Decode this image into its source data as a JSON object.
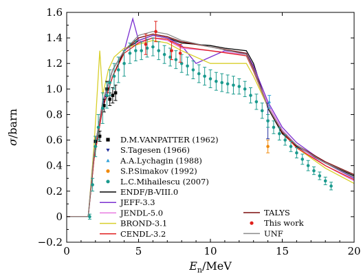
{
  "chart_data": {
    "type": "scatter",
    "title": "",
    "xlabel": {
      "main": "E",
      "sub": "n",
      "unit": "/MeV"
    },
    "ylabel": {
      "main": "σ",
      "unit": "/barn"
    },
    "xlim": [
      0,
      20
    ],
    "ylim": [
      -0.2,
      1.6
    ],
    "xticks": [
      0,
      5,
      10,
      15,
      20
    ],
    "yticks": [
      -0.2,
      0,
      0.2,
      0.4,
      0.6,
      0.8,
      1.0,
      1.2,
      1.4,
      1.6
    ],
    "ytick_labels": [
      "−0.2",
      "0",
      "0.2",
      "0.4",
      "0.6",
      "0.8",
      "1.0",
      "1.2",
      "1.4",
      "1.6"
    ],
    "legend_position": "lower-center",
    "point_series": [
      {
        "name": "D.M.VANPATTER (1962)",
        "color": "#000000",
        "marker": "square",
        "points": [
          [
            2.0,
            0.59,
            0.04
          ],
          [
            2.3,
            0.63,
            0.04
          ],
          [
            2.6,
            0.87,
            0.05
          ],
          [
            2.8,
            1.0,
            0.06
          ],
          [
            3.0,
            0.92,
            0.05
          ],
          [
            3.2,
            0.95,
            0.06
          ],
          [
            3.4,
            0.97,
            0.06
          ]
        ]
      },
      {
        "name": "S.Tagesen (1966)",
        "color": "#1f2d9a",
        "marker": "triangle-down",
        "points": [
          [
            14.0,
            0.75,
            0.14
          ]
        ]
      },
      {
        "name": "A.A.Lychagin (1988)",
        "color": "#2a9fd8",
        "marker": "triangle-up",
        "points": [
          [
            14.1,
            0.9,
            0.05
          ]
        ]
      },
      {
        "name": "S.P.Simakov (1992)",
        "color": "#f08a0c",
        "marker": "circle",
        "points": [
          [
            14.0,
            0.55,
            0.05
          ]
        ]
      },
      {
        "name": "L.C.Mihailescu (2007)",
        "color": "#1a9a8e",
        "marker": "circle",
        "points": [
          [
            1.6,
            0.0,
            0.02
          ],
          [
            1.8,
            0.25,
            0.05
          ],
          [
            2.0,
            0.55,
            0.08
          ],
          [
            2.2,
            0.7,
            0.1
          ],
          [
            2.5,
            0.85,
            0.12
          ],
          [
            2.8,
            0.95,
            0.1
          ],
          [
            3.0,
            1.05,
            0.1
          ],
          [
            3.3,
            1.1,
            0.1
          ],
          [
            3.6,
            1.15,
            0.1
          ],
          [
            4.0,
            1.2,
            0.1
          ],
          [
            4.4,
            1.28,
            0.08
          ],
          [
            4.8,
            1.3,
            0.08
          ],
          [
            5.2,
            1.3,
            0.07
          ],
          [
            5.6,
            1.32,
            0.07
          ],
          [
            6.0,
            1.33,
            0.07
          ],
          [
            6.4,
            1.3,
            0.07
          ],
          [
            6.8,
            1.27,
            0.07
          ],
          [
            7.2,
            1.25,
            0.07
          ],
          [
            7.6,
            1.23,
            0.07
          ],
          [
            8.0,
            1.2,
            0.07
          ],
          [
            8.4,
            1.18,
            0.07
          ],
          [
            8.8,
            1.15,
            0.07
          ],
          [
            9.2,
            1.12,
            0.07
          ],
          [
            9.6,
            1.1,
            0.07
          ],
          [
            10.0,
            1.08,
            0.07
          ],
          [
            10.4,
            1.06,
            0.07
          ],
          [
            10.8,
            1.05,
            0.07
          ],
          [
            11.2,
            1.04,
            0.07
          ],
          [
            11.6,
            1.03,
            0.07
          ],
          [
            12.0,
            1.02,
            0.06
          ],
          [
            12.4,
            1.0,
            0.06
          ],
          [
            12.8,
            0.95,
            0.06
          ],
          [
            13.2,
            0.9,
            0.06
          ],
          [
            13.6,
            0.83,
            0.06
          ],
          [
            14.0,
            0.75,
            0.05
          ],
          [
            14.4,
            0.7,
            0.05
          ],
          [
            14.8,
            0.65,
            0.05
          ],
          [
            15.2,
            0.6,
            0.04
          ],
          [
            15.6,
            0.55,
            0.04
          ],
          [
            16.0,
            0.5,
            0.04
          ],
          [
            16.4,
            0.45,
            0.04
          ],
          [
            16.8,
            0.4,
            0.04
          ],
          [
            17.2,
            0.36,
            0.03
          ],
          [
            17.6,
            0.32,
            0.03
          ],
          [
            18.0,
            0.28,
            0.03
          ],
          [
            18.4,
            0.24,
            0.03
          ]
        ]
      },
      {
        "name": "This work",
        "color": "#e0201b",
        "marker": "circle",
        "points": [
          [
            5.5,
            1.35,
            0.08
          ],
          [
            6.2,
            1.45,
            0.08
          ],
          [
            7.3,
            1.3,
            0.07
          ],
          [
            7.9,
            1.28,
            0.07
          ]
        ]
      }
    ],
    "curve_series": [
      {
        "name": "ENDF/B-VIII.0",
        "color": "#000000",
        "points": [
          [
            0,
            0
          ],
          [
            1.5,
            0
          ],
          [
            1.9,
            0.45
          ],
          [
            2.5,
            0.85
          ],
          [
            3.2,
            1.1
          ],
          [
            4.0,
            1.3
          ],
          [
            5.0,
            1.38
          ],
          [
            6.0,
            1.42
          ],
          [
            7.0,
            1.4
          ],
          [
            8.0,
            1.36
          ],
          [
            10.0,
            1.34
          ],
          [
            11.0,
            1.32
          ],
          [
            12.5,
            1.3
          ],
          [
            13.0,
            1.2
          ],
          [
            14.0,
            0.85
          ],
          [
            15.0,
            0.65
          ],
          [
            16.0,
            0.55
          ],
          [
            18.0,
            0.42
          ],
          [
            20.0,
            0.32
          ]
        ]
      },
      {
        "name": "JEFF-3.3",
        "color": "#7a2fd0",
        "points": [
          [
            0,
            0
          ],
          [
            1.5,
            0
          ],
          [
            1.9,
            0.5
          ],
          [
            2.5,
            0.88
          ],
          [
            3.2,
            1.15
          ],
          [
            4.0,
            1.3
          ],
          [
            4.6,
            1.55
          ],
          [
            5.0,
            1.38
          ],
          [
            6.0,
            1.42
          ],
          [
            7.0,
            1.4
          ],
          [
            8.0,
            1.34
          ],
          [
            9.0,
            1.2
          ],
          [
            10.0,
            1.25
          ],
          [
            11.0,
            1.3
          ],
          [
            12.5,
            1.28
          ],
          [
            13.0,
            1.18
          ],
          [
            14.0,
            0.9
          ],
          [
            15.0,
            0.7
          ],
          [
            16.0,
            0.58
          ],
          [
            18.0,
            0.42
          ],
          [
            20.0,
            0.3
          ]
        ]
      },
      {
        "name": "JENDL-5.0",
        "color": "#e879e0",
        "points": [
          [
            0,
            0
          ],
          [
            1.5,
            0
          ],
          [
            1.9,
            0.5
          ],
          [
            2.5,
            0.9
          ],
          [
            3.2,
            1.15
          ],
          [
            4.0,
            1.3
          ],
          [
            5.0,
            1.37
          ],
          [
            6.0,
            1.4
          ],
          [
            7.0,
            1.38
          ],
          [
            8.0,
            1.32
          ],
          [
            10.0,
            1.3
          ],
          [
            12.5,
            1.27
          ],
          [
            13.0,
            1.15
          ],
          [
            14.0,
            0.88
          ],
          [
            15.0,
            0.68
          ],
          [
            16.0,
            0.56
          ],
          [
            18.0,
            0.4
          ],
          [
            20.0,
            0.28
          ]
        ]
      },
      {
        "name": "BROND-3.1",
        "color": "#d8cf2a",
        "points": [
          [
            0,
            0
          ],
          [
            1.5,
            0
          ],
          [
            1.9,
            0.55
          ],
          [
            2.3,
            1.3
          ],
          [
            2.5,
            0.95
          ],
          [
            2.9,
            1.15
          ],
          [
            3.3,
            1.25
          ],
          [
            4.0,
            1.32
          ],
          [
            5.0,
            1.35
          ],
          [
            6.0,
            1.38
          ],
          [
            7.0,
            1.36
          ],
          [
            8.0,
            1.3
          ],
          [
            10.0,
            1.2
          ],
          [
            12.5,
            1.2
          ],
          [
            13.0,
            1.1
          ],
          [
            14.0,
            0.86
          ],
          [
            15.0,
            0.66
          ],
          [
            16.0,
            0.54
          ],
          [
            18.0,
            0.38
          ],
          [
            20.0,
            0.26
          ]
        ]
      },
      {
        "name": "CENDL-3.2",
        "color": "#e02020",
        "points": [
          [
            0,
            0
          ],
          [
            1.5,
            0
          ],
          [
            1.9,
            0.45
          ],
          [
            2.5,
            0.85
          ],
          [
            3.2,
            1.1
          ],
          [
            4.0,
            1.28
          ],
          [
            5.0,
            1.36
          ],
          [
            6.0,
            1.4
          ],
          [
            7.0,
            1.39
          ],
          [
            8.0,
            1.33
          ],
          [
            10.0,
            1.3
          ],
          [
            12.5,
            1.26
          ],
          [
            13.0,
            1.14
          ],
          [
            14.0,
            0.86
          ],
          [
            15.0,
            0.66
          ],
          [
            16.0,
            0.54
          ],
          [
            18.0,
            0.4
          ],
          [
            20.0,
            0.29
          ]
        ]
      },
      {
        "name": "TALYS",
        "color": "#7a0a0a",
        "points": [
          [
            0,
            0
          ],
          [
            1.5,
            0
          ],
          [
            1.9,
            0.5
          ],
          [
            2.5,
            0.9
          ],
          [
            3.2,
            1.15
          ],
          [
            4.0,
            1.3
          ],
          [
            5.0,
            1.4
          ],
          [
            6.0,
            1.43
          ],
          [
            7.0,
            1.41
          ],
          [
            8.0,
            1.37
          ],
          [
            10.0,
            1.33
          ],
          [
            12.5,
            1.28
          ],
          [
            13.0,
            1.16
          ],
          [
            14.0,
            0.86
          ],
          [
            15.0,
            0.66
          ],
          [
            16.0,
            0.56
          ],
          [
            18.0,
            0.43
          ],
          [
            20.0,
            0.33
          ]
        ]
      },
      {
        "name": "UNF",
        "color": "#8a8a8a",
        "points": [
          [
            0,
            0
          ],
          [
            1.5,
            0
          ],
          [
            1.9,
            0.5
          ],
          [
            2.5,
            0.9
          ],
          [
            3.2,
            1.15
          ],
          [
            4.0,
            1.3
          ],
          [
            5.0,
            1.42
          ],
          [
            6.0,
            1.45
          ],
          [
            7.0,
            1.43
          ],
          [
            8.0,
            1.38
          ],
          [
            10.0,
            1.33
          ],
          [
            12.5,
            1.27
          ],
          [
            13.0,
            1.15
          ],
          [
            14.0,
            0.86
          ],
          [
            15.0,
            0.67
          ],
          [
            16.0,
            0.56
          ],
          [
            18.0,
            0.42
          ],
          [
            20.0,
            0.31
          ]
        ]
      }
    ],
    "legend": {
      "column1": [
        "D.M.VANPATTER (1962)",
        "S.Tagesen (1966)",
        "A.A.Lychagin (1988)",
        "S.P.Simakov (1992)",
        "L.C.Mihailescu (2007)",
        "ENDF/B-VIII.0",
        "JEFF-3.3",
        "JENDL-5.0",
        "BROND-3.1",
        "CENDL-3.2"
      ],
      "column2": [
        "TALYS",
        "This work",
        "UNF"
      ]
    }
  }
}
